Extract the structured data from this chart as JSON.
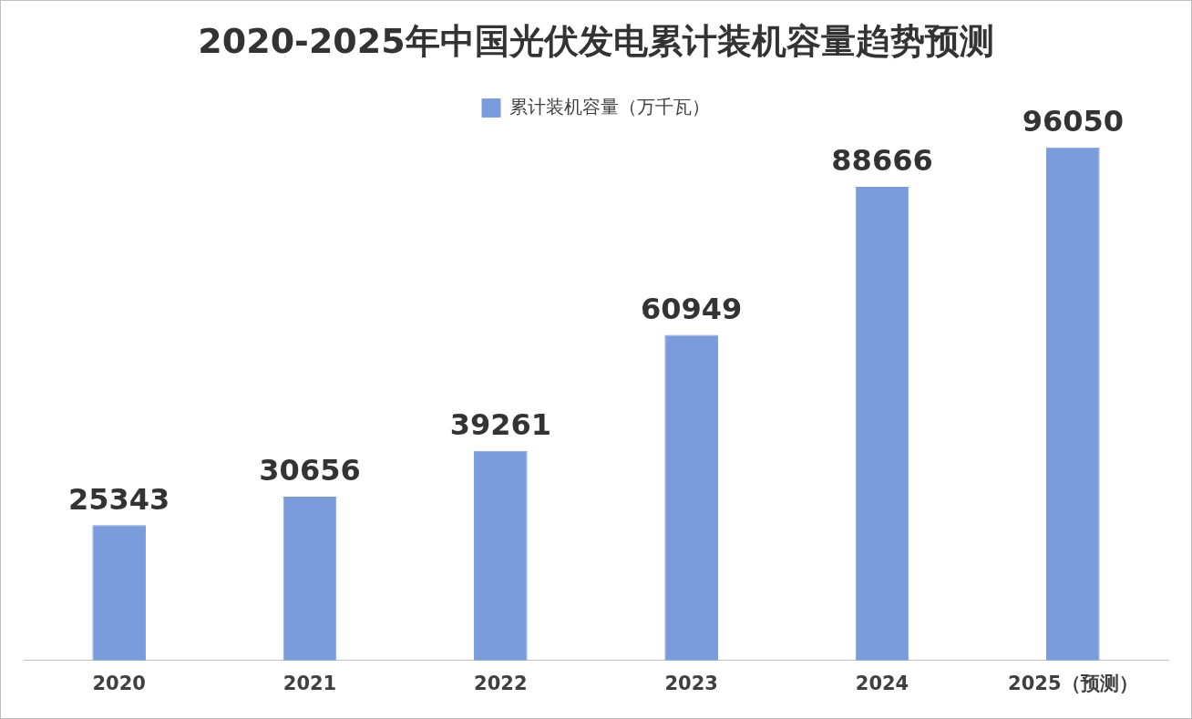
{
  "chart_data": {
    "type": "bar",
    "title": "2020-2025年中国光伏发电累计装机容量趋势预测",
    "categories": [
      "2020",
      "2021",
      "2022",
      "2023",
      "2024",
      "2025（预测）"
    ],
    "series": [
      {
        "name": "累计装机容量（万千瓦）",
        "color": "#7b9cdb",
        "values": [
          25343,
          30656,
          39261,
          60949,
          88666,
          96050
        ]
      }
    ],
    "data_labels": true,
    "legend": "top",
    "grid": false
  }
}
